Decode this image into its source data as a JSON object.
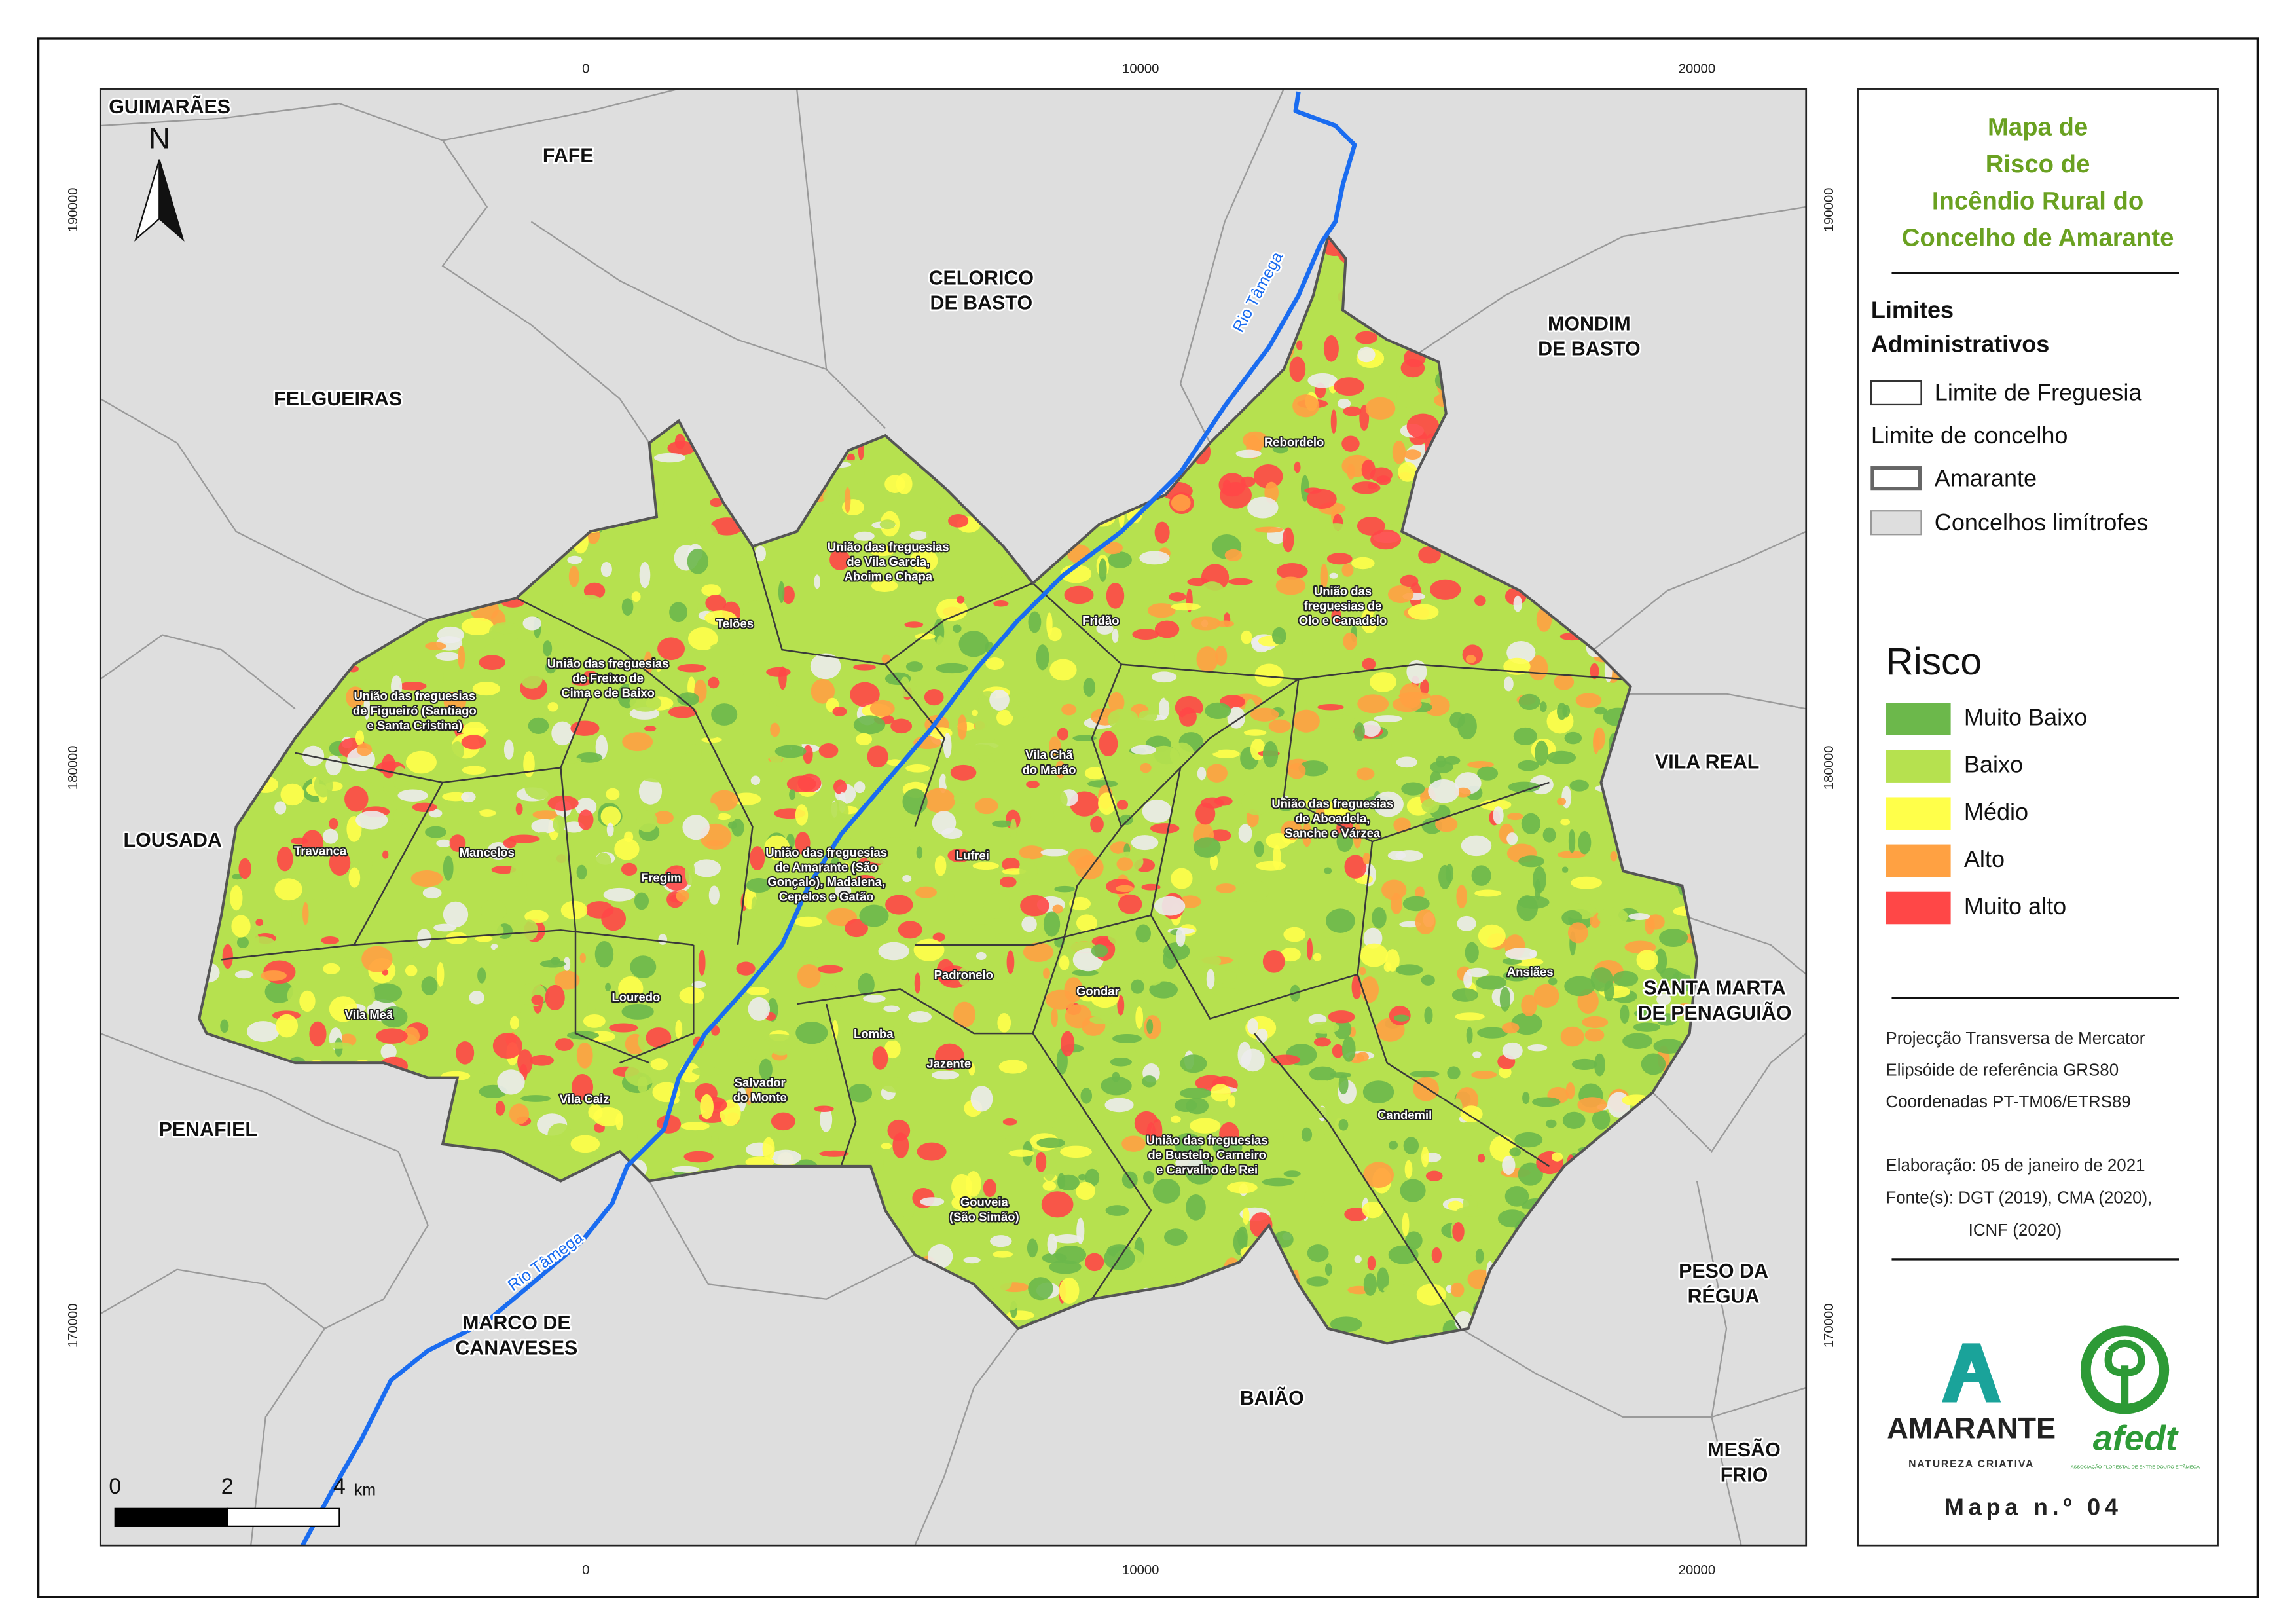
{
  "map": {
    "coordinate_labels": {
      "x": [
        "0",
        "10000",
        "20000"
      ],
      "y": [
        "190000",
        "180000",
        "170000"
      ]
    },
    "north_arrow": "N",
    "neighbor_councils": [
      [
        "GUIMARÃES"
      ],
      [
        "FAFE"
      ],
      [
        "CELORICO",
        "DE BASTO"
      ],
      [
        "MONDIM",
        "DE BASTO"
      ],
      [
        "FELGUEIRAS"
      ],
      [
        "VILA REAL"
      ],
      [
        "LOUSADA"
      ],
      [
        "SANTA MARTA",
        "DE PENAGUIÃO"
      ],
      [
        "PENAFIEL"
      ],
      [
        "PESO DA",
        "RÉGUA"
      ],
      [
        "MARCO DE",
        "CANAVESES"
      ],
      [
        "BAIÃO"
      ],
      [
        "MESÃO",
        "FRIO"
      ]
    ],
    "parishes": [
      [
        "Rebordelo"
      ],
      [
        "União das freguesias",
        "de Vila Garcia,",
        "Aboim e Chapa"
      ],
      [
        "Telões"
      ],
      [
        "Fridão"
      ],
      [
        "União das",
        "freguesias de",
        "Olo e Canadelo"
      ],
      [
        "União das freguesias",
        "de Freixo de",
        "Cima e de Baixo"
      ],
      [
        "União das freguesias",
        "de Figueiró (Santiago",
        "e Santa Cristina)"
      ],
      [
        "Vila Chã",
        "do Marão"
      ],
      [
        "União das freguesias",
        "de Aboadela,",
        "Sanche e Várzea"
      ],
      [
        "Travanca"
      ],
      [
        "Mancelos"
      ],
      [
        "Fregim"
      ],
      [
        "União das freguesias",
        "de Amarante (São",
        "Gonçalo), Madalena,",
        "Cepelos e Gatão"
      ],
      [
        "Lufrei"
      ],
      [
        "Padronelo"
      ],
      [
        "Gondar"
      ],
      [
        "Ansiães"
      ],
      [
        "Louredo"
      ],
      [
        "Vila Meã"
      ],
      [
        "Lomba"
      ],
      [
        "Jazente"
      ],
      [
        "Salvador",
        "do Monte"
      ],
      [
        "Vila Caiz"
      ],
      [
        "Candemil"
      ],
      [
        "União das freguesias",
        "de Bustelo, Carneiro",
        "e Carvalho de Rei"
      ],
      [
        "Gouveia",
        "(São Simão)"
      ]
    ],
    "rivers": [
      "Rio Tâmega",
      "Rio Tâmega"
    ],
    "scale_bar": {
      "labels": [
        "0",
        "2",
        "4"
      ],
      "unit": "km"
    }
  },
  "legend": {
    "title": [
      "Mapa de",
      "Risco de",
      "Incêndio Rural do",
      "Concelho de Amarante"
    ],
    "boundaries_title": [
      "Limites",
      "Administrativos"
    ],
    "parish_limit": "Limite de Freguesia",
    "council_limit_title": "Limite de concelho",
    "council_amarante": "Amarante",
    "council_neighbors": "Concelhos limítrofes",
    "risk_title": "Risco",
    "risk_classes": [
      {
        "label": "Muito Baixo",
        "color": "#6cb84b"
      },
      {
        "label": "Baixo",
        "color": "#b6e14f"
      },
      {
        "label": "Médio",
        "color": "#ffff4a"
      },
      {
        "label": "Alto",
        "color": "#ffa142"
      },
      {
        "label": "Muito alto",
        "color": "#ff4747"
      }
    ],
    "projection": [
      "Projecção Transversa de Mercator",
      "Elipsóide de referência GRS80",
      "Coordenadas PT-TM06/ETRS89"
    ],
    "credits": [
      "Elaboração: 05 de janeiro de 2021",
      "Fonte(s): DGT (2019), CMA (2020),",
      "ICNF (2020)"
    ],
    "logos": {
      "amarante": "AMARANTE",
      "amarante_tagline": "NATUREZA CRIATIVA",
      "afedt": "afedt",
      "afedt_tagline": "ASSOCIAÇÃO FLORESTAL DE ENTRE DOURO E TÂMEGA"
    },
    "map_number": "Mapa n.º 04"
  }
}
